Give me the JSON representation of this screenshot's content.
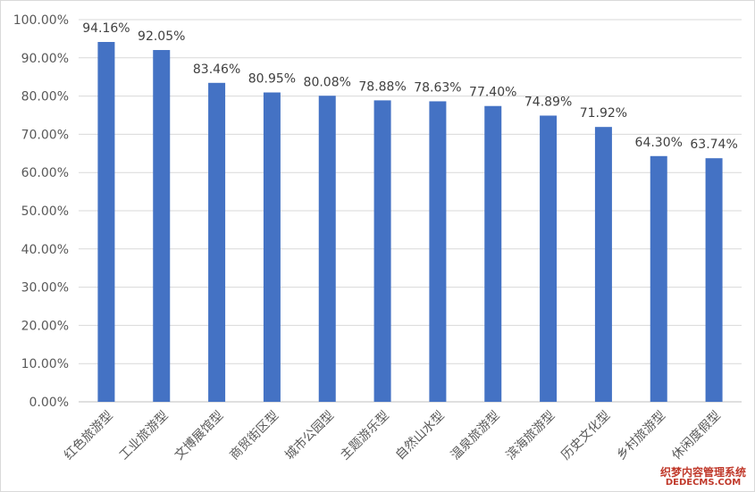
{
  "chart_data": {
    "type": "bar",
    "categories": [
      "红色旅游型",
      "工业旅游型",
      "文博展馆型",
      "商贸街区型",
      "城市公园型",
      "主题游乐型",
      "自然山水型",
      "温泉旅游型",
      "滨海旅游型",
      "历史文化型",
      "乡村旅游型",
      "休闲度假型"
    ],
    "values": [
      94.16,
      92.05,
      83.46,
      80.95,
      80.08,
      78.88,
      78.63,
      77.4,
      74.89,
      71.92,
      64.3,
      63.74
    ],
    "value_labels": [
      "94.16%",
      "92.05%",
      "83.46%",
      "80.95%",
      "80.08%",
      "78.88%",
      "78.63%",
      "77.40%",
      "74.89%",
      "71.92%",
      "64.30%",
      "63.74%"
    ],
    "y_ticks": [
      "0.00%",
      "10.00%",
      "20.00%",
      "30.00%",
      "40.00%",
      "50.00%",
      "60.00%",
      "70.00%",
      "80.00%",
      "90.00%",
      "100.00%"
    ],
    "ylim": [
      0,
      100
    ],
    "grid": true,
    "legend": "none",
    "bar_color": "#4472c4",
    "title": "",
    "xlabel": "",
    "ylabel": ""
  },
  "watermark": {
    "line1": "织梦内容管理系统",
    "line2": "DEDECMS.COM"
  }
}
